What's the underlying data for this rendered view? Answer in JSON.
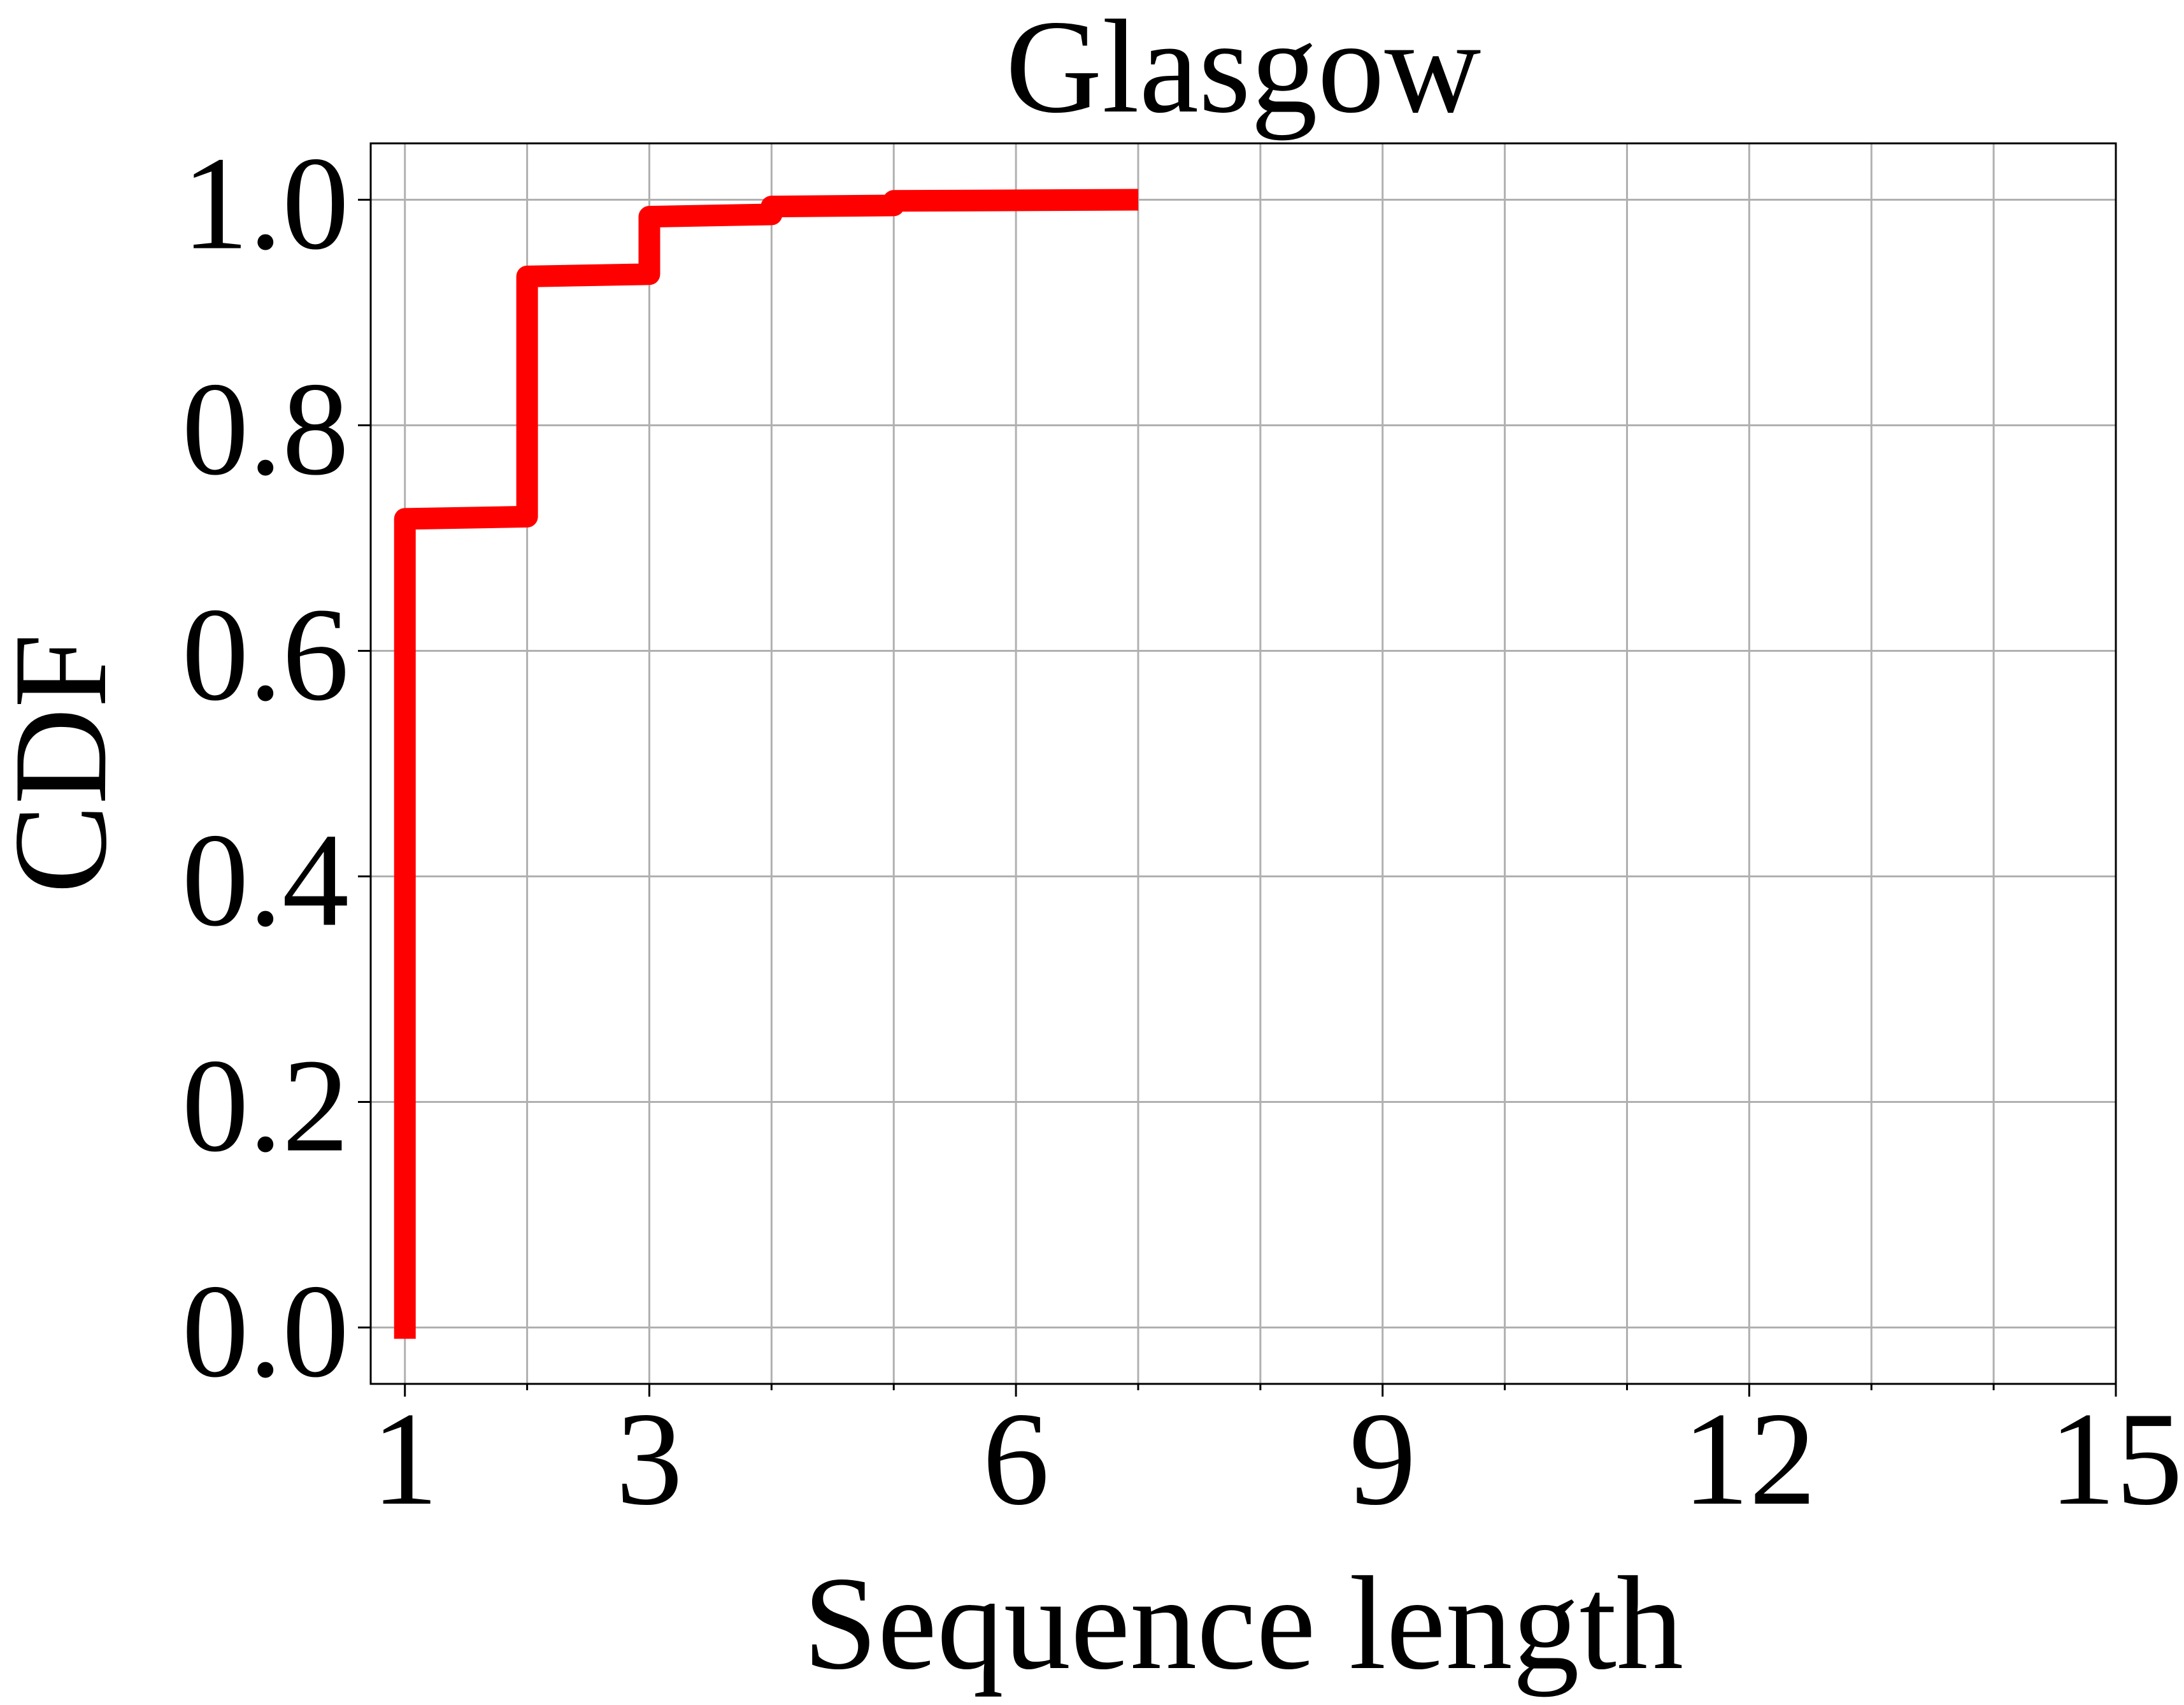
{
  "chart_data": {
    "type": "line",
    "title": "Glasgow",
    "xlabel": "Sequence length",
    "ylabel": "CDF",
    "xlim": [
      0.72,
      15
    ],
    "ylim": [
      -0.05,
      1.05
    ],
    "x_ticks": [
      1,
      3,
      6,
      9,
      12,
      15
    ],
    "x_minor_ticks": [
      2,
      4,
      5,
      7,
      8,
      10,
      11,
      13,
      14
    ],
    "y_ticks": [
      0.0,
      0.2,
      0.4,
      0.6,
      0.8,
      1.0
    ],
    "x_tick_labels": [
      "1",
      "3",
      "6",
      "9",
      "12",
      "15"
    ],
    "y_tick_labels": [
      "0.0",
      "0.2",
      "0.4",
      "0.6",
      "0.8",
      "1.0"
    ],
    "grid": true,
    "series": [
      {
        "color": "#ff0000",
        "step": "post",
        "x": [
          1,
          1,
          2,
          2,
          3,
          3,
          4,
          4,
          5,
          5,
          7
        ],
        "y": [
          -0.01,
          0.717,
          0.719,
          0.932,
          0.934,
          0.985,
          0.987,
          0.994,
          0.995,
          0.999,
          1.0
        ]
      }
    ]
  }
}
